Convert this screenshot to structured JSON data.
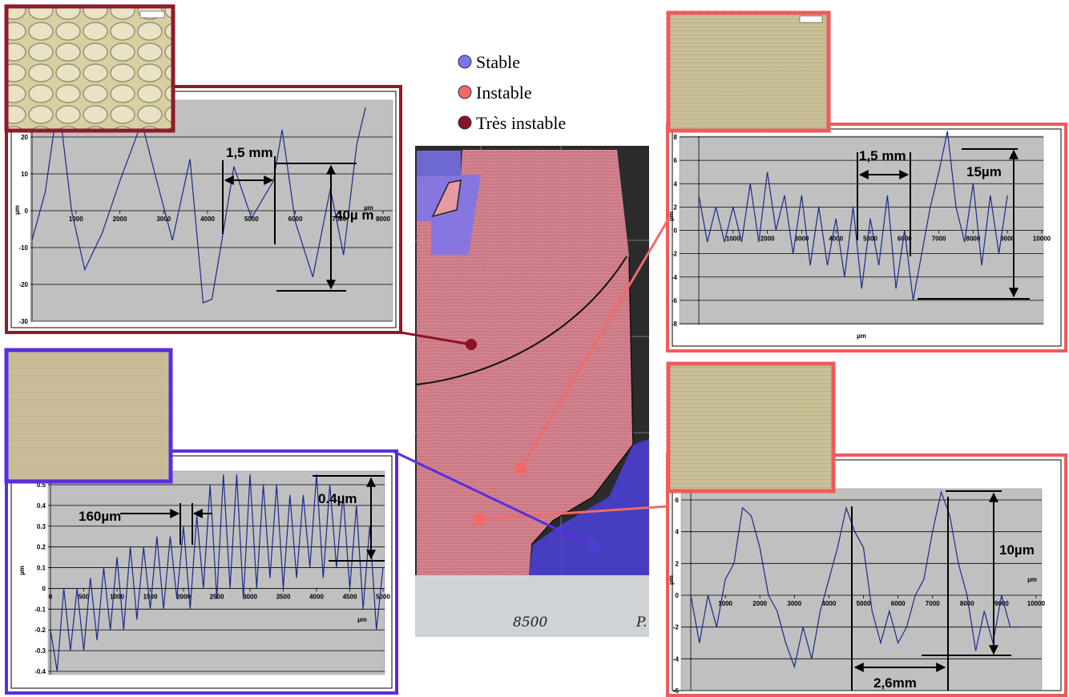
{
  "legend": [
    {
      "label": "Stable",
      "color": "#7a74ee"
    },
    {
      "label": "Instable",
      "color": "#f06a6a"
    },
    {
      "label": "Très instable",
      "color": "#8b1224"
    }
  ],
  "workpiece_labels": [
    "8500",
    "P."
  ],
  "chart_data": [
    {
      "type": "line",
      "frame_color": "#8e1b2b",
      "color": "#1c2a8c",
      "y_label": "µm",
      "x_label": "µm",
      "annotations": [
        "1,5 mm",
        "40µ m"
      ],
      "x": [
        0,
        300,
        600,
        900,
        1200,
        1600,
        2000,
        2500,
        2800,
        3200,
        3600,
        3900,
        4100,
        4300,
        4600,
        5000,
        5500,
        5700,
        6000,
        6400,
        6800,
        7100,
        7400,
        7600
      ],
      "values": [
        -8,
        5,
        30,
        0,
        -16,
        -6,
        8,
        24,
        10,
        -8,
        14,
        -25,
        -24,
        -10,
        12,
        -2,
        8,
        22,
        -3,
        -18,
        6,
        -12,
        18,
        28
      ],
      "xlim": [
        0,
        8000
      ],
      "ylim": [
        -30,
        30
      ],
      "xticks": [
        1000,
        2000,
        3000,
        4000,
        5000,
        6000,
        7000,
        8000
      ],
      "yticks": [
        -30,
        -20,
        -10,
        0,
        10,
        20
      ],
      "grid": true
    },
    {
      "type": "line",
      "frame_color": "#f05a5a",
      "color": "#1c2a8c",
      "y_label": "µm",
      "x_label": "µm",
      "annotations": [
        "1,5 mm",
        "15µm"
      ],
      "x": [
        0,
        250,
        500,
        750,
        1000,
        1250,
        1500,
        1750,
        2000,
        2250,
        2500,
        2750,
        3000,
        3250,
        3500,
        3750,
        4000,
        4250,
        4500,
        4750,
        5000,
        5250,
        5500,
        5750,
        6000,
        6250,
        6500,
        6750,
        7000,
        7250,
        7500,
        7750,
        8000,
        8250,
        8500,
        8750,
        9000
      ],
      "values": [
        3,
        -1,
        2,
        -1,
        2,
        -1,
        4,
        -1,
        5,
        0,
        3,
        -2,
        3,
        -3,
        2,
        -3,
        1,
        -4,
        2,
        -5,
        1,
        -3,
        3,
        -5,
        0,
        -6,
        -2,
        2,
        5,
        8.5,
        2,
        -1,
        4,
        -3,
        3,
        -2,
        3
      ],
      "xlim": [
        0,
        10000
      ],
      "ylim": [
        -8,
        8
      ],
      "xticks": [
        1000,
        2000,
        3000,
        4000,
        5000,
        6000,
        7000,
        8000,
        9000,
        10000
      ],
      "yticks": [
        -8,
        -6,
        -4,
        -2,
        0,
        2,
        4,
        6,
        8
      ],
      "grid": true
    },
    {
      "type": "line",
      "frame_color": "#5a2de0",
      "color": "#1c2a8c",
      "y_label": "µm",
      "x_label": "µm",
      "annotations": [
        "160µm",
        "0.4µm"
      ],
      "x": [
        0,
        100,
        200,
        300,
        400,
        500,
        600,
        700,
        800,
        900,
        1000,
        1100,
        1200,
        1300,
        1400,
        1500,
        1600,
        1700,
        1800,
        1900,
        2000,
        2100,
        2200,
        2300,
        2400,
        2500,
        2600,
        2700,
        2800,
        2900,
        3000,
        3100,
        3200,
        3300,
        3400,
        3500,
        3600,
        3700,
        3800,
        3900,
        4000,
        4100,
        4200,
        4300,
        4400,
        4500,
        4600,
        4700,
        4800,
        4900,
        5000
      ],
      "values": [
        -0.2,
        -0.4,
        0,
        -0.3,
        0,
        -0.3,
        0.05,
        -0.25,
        0.1,
        -0.2,
        0.15,
        -0.2,
        0.2,
        -0.15,
        0.2,
        -0.1,
        0.25,
        -0.1,
        0.25,
        -0.05,
        0.3,
        -0.1,
        0.35,
        0,
        0.5,
        -0.05,
        0.55,
        0,
        0.55,
        -0.05,
        0.55,
        0,
        0.5,
        0.05,
        0.5,
        0,
        0.45,
        0.05,
        0.45,
        0.1,
        0.55,
        0.05,
        0.5,
        0.1,
        0.45,
        0,
        0.4,
        -0.1,
        0.3,
        -0.2,
        0.1
      ],
      "xlim": [
        0,
        5000
      ],
      "ylim": [
        -0.4,
        0.5
      ],
      "xticks": [
        0,
        500,
        1000,
        1500,
        2000,
        2500,
        3000,
        3500,
        4000,
        4500,
        5000
      ],
      "yticks": [
        -0.4,
        -0.3,
        -0.2,
        -0.1,
        0,
        0.1,
        0.2,
        0.3,
        0.4,
        0.5
      ],
      "grid": true
    },
    {
      "type": "line",
      "frame_color": "#f05a5a",
      "color": "#1c2a8c",
      "y_label": "µm",
      "x_label": "µm",
      "annotations": [
        "10µm",
        "2,6mm"
      ],
      "x": [
        0,
        250,
        500,
        750,
        1000,
        1250,
        1500,
        1750,
        2000,
        2250,
        2500,
        2750,
        3000,
        3250,
        3500,
        3750,
        4000,
        4250,
        4500,
        4750,
        5000,
        5250,
        5500,
        5750,
        6000,
        6250,
        6500,
        6750,
        7000,
        7250,
        7500,
        7750,
        8000,
        8250,
        8500,
        8750,
        9000,
        9250,
        9500
      ],
      "values": [
        0,
        -3,
        0,
        -2,
        1,
        2,
        5.5,
        5,
        3,
        0,
        -1,
        -3,
        -4.5,
        -2,
        -4,
        -1,
        1,
        3,
        5.5,
        4,
        3,
        -1,
        -3,
        -1,
        -3,
        -2,
        0,
        1,
        4,
        6.5,
        5,
        2,
        0,
        -3.5,
        -1,
        -3,
        0,
        -2,
        -2
      ],
      "xlim": [
        0,
        10000
      ],
      "ylim": [
        -6,
        6
      ],
      "xticks": [
        1000,
        2000,
        3000,
        4000,
        5000,
        6000,
        7000,
        8000,
        9000,
        10000
      ],
      "yticks": [
        -6,
        -4,
        -2,
        0,
        2,
        4,
        6
      ],
      "grid": true
    }
  ]
}
